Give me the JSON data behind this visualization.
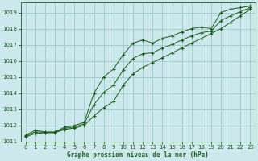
{
  "title": "Graphe pression niveau de la mer (hPa)",
  "bg_color": "#cce8ec",
  "grid_color": "#99cccc",
  "line_color": "#1a5c1a",
  "xlim": [
    -0.5,
    23.5
  ],
  "ylim": [
    1011,
    1019.6
  ],
  "yticks": [
    1011,
    1012,
    1013,
    1014,
    1015,
    1016,
    1017,
    1018,
    1019
  ],
  "xticks": [
    0,
    1,
    2,
    3,
    4,
    5,
    6,
    7,
    8,
    9,
    10,
    11,
    12,
    13,
    14,
    15,
    16,
    17,
    18,
    19,
    20,
    21,
    22,
    23
  ],
  "series1_x": [
    0,
    1,
    2,
    3,
    4,
    5,
    6,
    7,
    8,
    9,
    10,
    11,
    12,
    13,
    14,
    15,
    16,
    17,
    18,
    19,
    20,
    21,
    22,
    23
  ],
  "series1_y": [
    1011.4,
    1011.7,
    1011.6,
    1011.6,
    1011.9,
    1012.0,
    1012.2,
    1014.0,
    1015.0,
    1015.5,
    1016.4,
    1017.1,
    1017.3,
    1017.1,
    1017.4,
    1017.55,
    1017.8,
    1018.0,
    1018.1,
    1018.0,
    1019.0,
    1019.2,
    1019.3,
    1019.4
  ],
  "series2_x": [
    0,
    1,
    2,
    3,
    4,
    5,
    6,
    7,
    8,
    9,
    10,
    11,
    12,
    13,
    14,
    15,
    16,
    17,
    18,
    19,
    20,
    21,
    22,
    23
  ],
  "series2_y": [
    1011.3,
    1011.5,
    1011.55,
    1011.55,
    1011.75,
    1011.85,
    1012.0,
    1012.6,
    1013.1,
    1013.5,
    1014.5,
    1015.2,
    1015.6,
    1015.9,
    1016.2,
    1016.5,
    1016.8,
    1017.1,
    1017.4,
    1017.7,
    1018.0,
    1018.4,
    1018.8,
    1019.2
  ],
  "series3_x": [
    0,
    1,
    2,
    3,
    4,
    5,
    6,
    7,
    8,
    9,
    10,
    11,
    12,
    13,
    14,
    15,
    16,
    17,
    18,
    19,
    20,
    21,
    22,
    23
  ],
  "series3_y": [
    1011.35,
    1011.6,
    1011.58,
    1011.58,
    1011.82,
    1011.92,
    1012.1,
    1013.3,
    1014.05,
    1014.5,
    1015.45,
    1016.15,
    1016.45,
    1016.5,
    1016.8,
    1017.02,
    1017.3,
    1017.55,
    1017.75,
    1017.85,
    1018.5,
    1018.8,
    1019.05,
    1019.3
  ]
}
